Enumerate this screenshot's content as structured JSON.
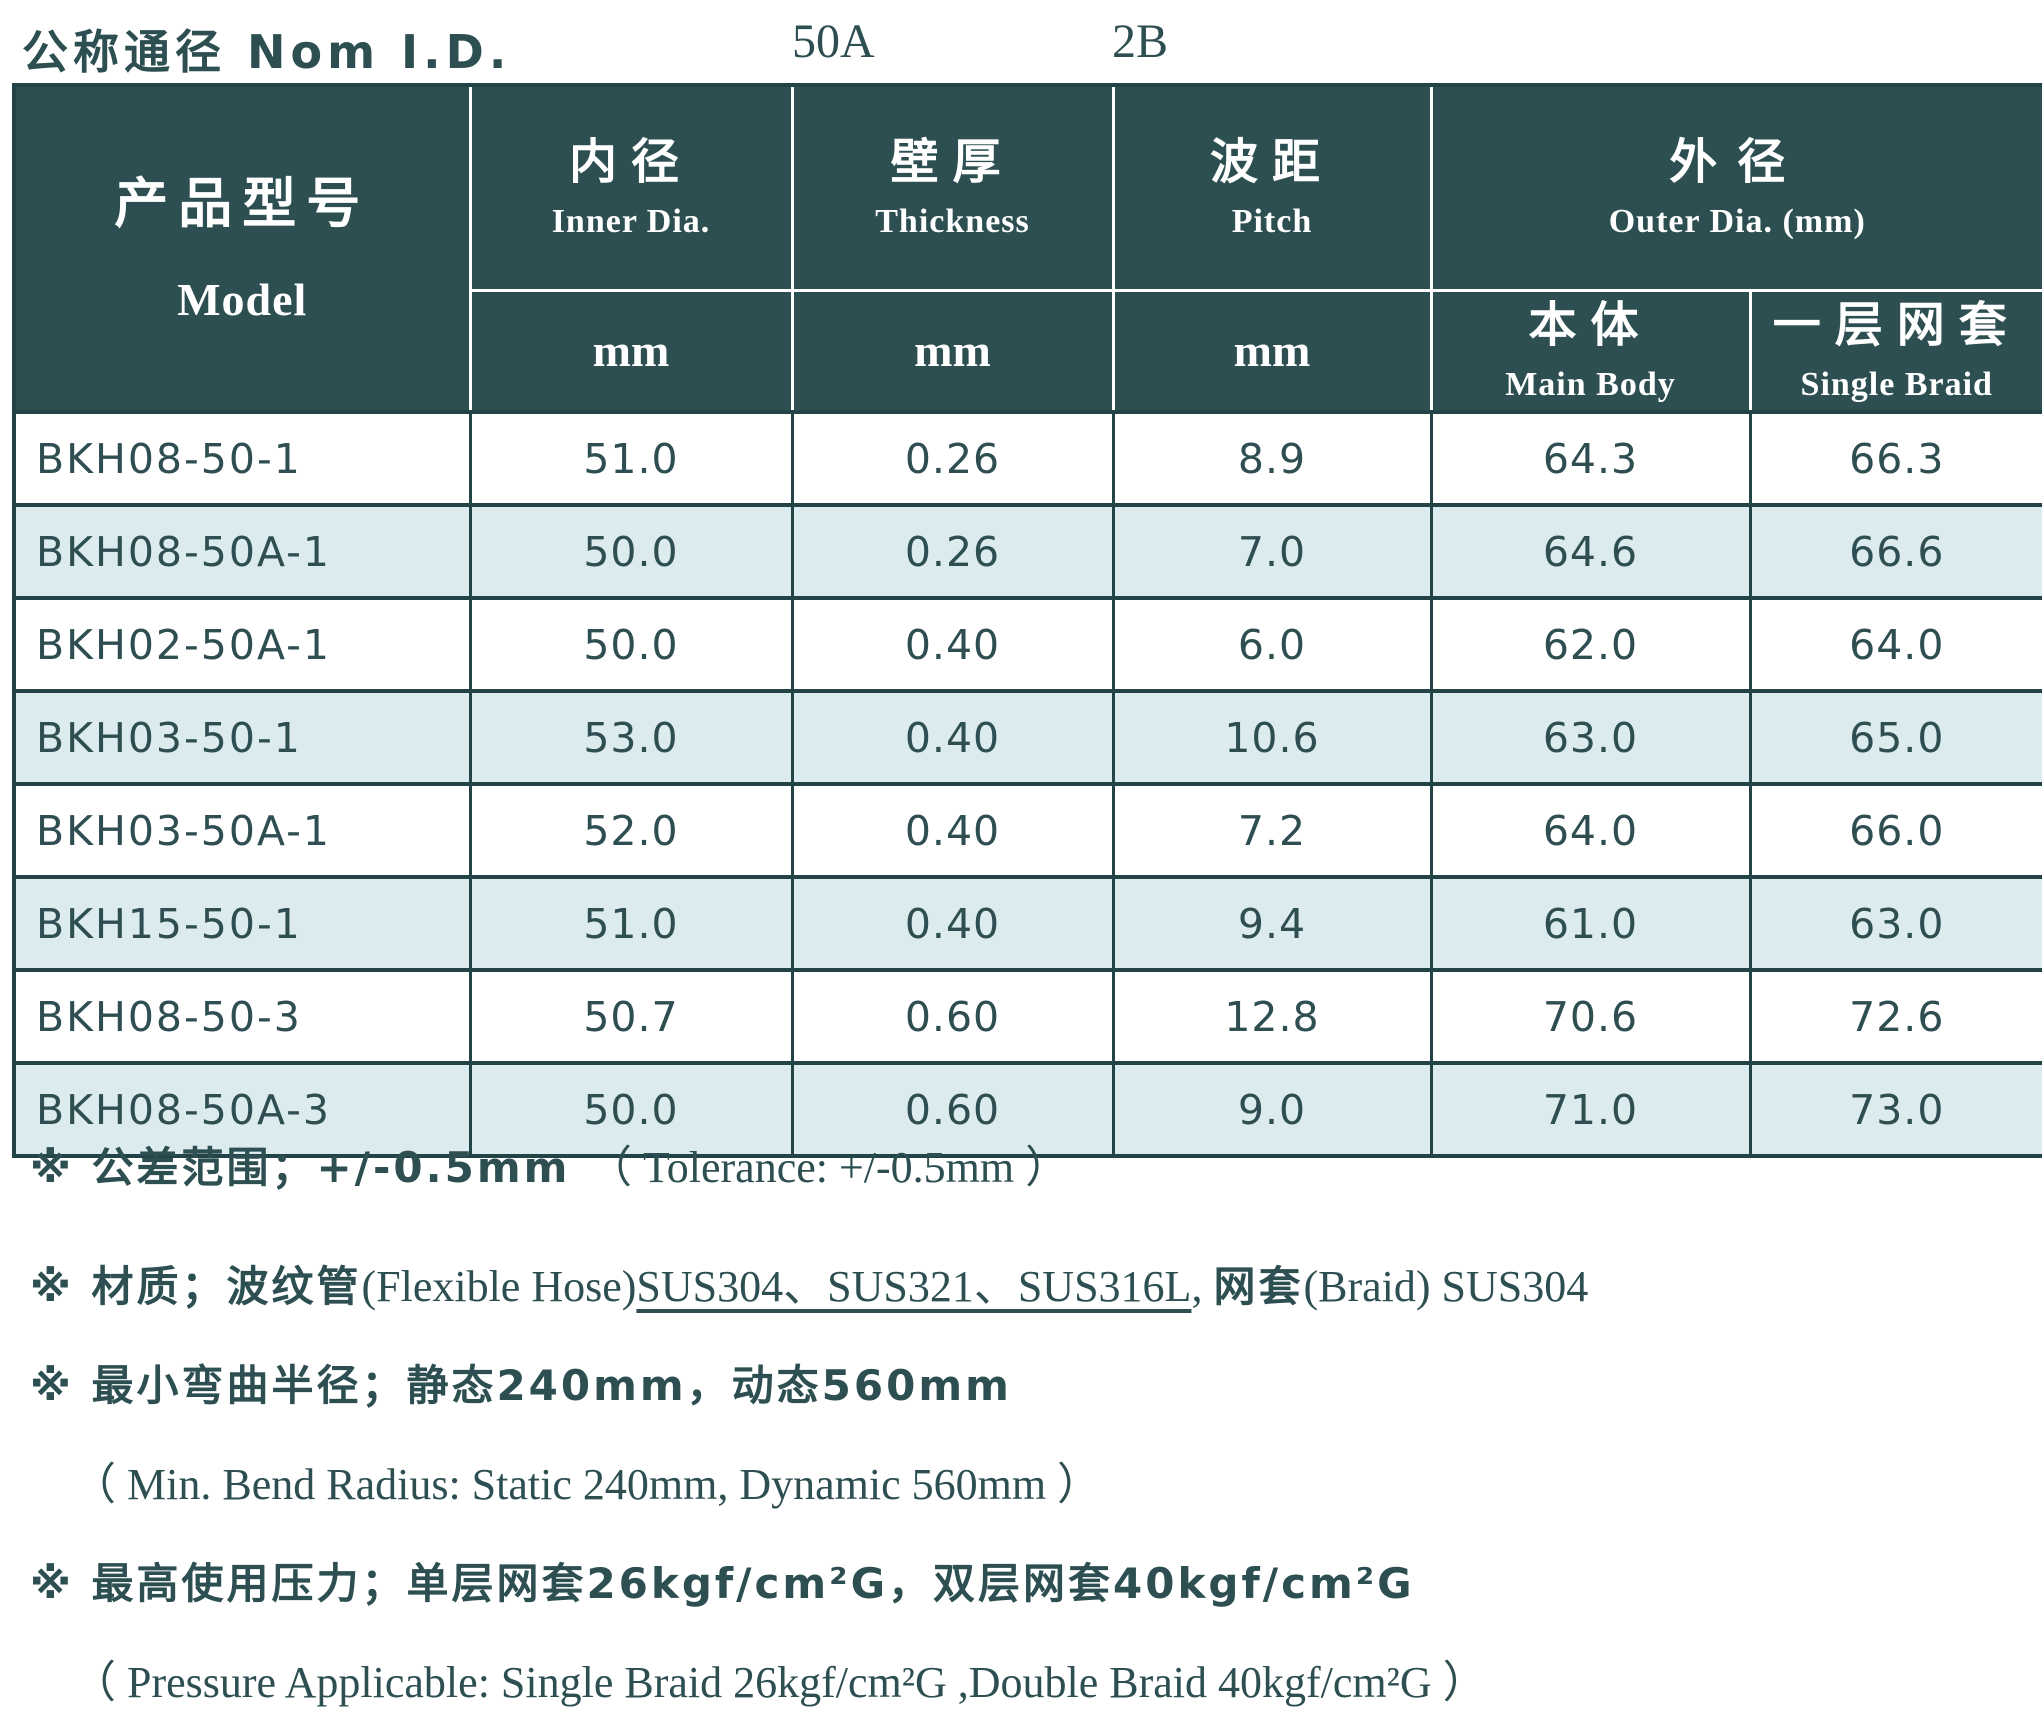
{
  "title_row": {
    "label": "公称通径 Nom I.D.",
    "size": "50A",
    "grade": "2B"
  },
  "colors": {
    "header_bg": "#2d4f52",
    "row_alt_bg": "#dcebed",
    "text": "#2e4e52",
    "border": "#234447"
  },
  "table": {
    "model_header": {
      "zh": "产品型号",
      "en": "Model"
    },
    "columns": [
      {
        "zh": "内径",
        "en": "Inner Dia.",
        "unit": "mm"
      },
      {
        "zh": "壁厚",
        "en": "Thickness",
        "unit": "mm"
      },
      {
        "zh": "波距",
        "en": "Pitch",
        "unit": "mm"
      }
    ],
    "outer_header": {
      "zh": "外径",
      "en": "Outer Dia. (mm)"
    },
    "outer_sub": [
      {
        "zh": "本体",
        "en": "Main Body"
      },
      {
        "zh": "一层网套",
        "en": "Single Braid"
      }
    ],
    "rows": [
      [
        "BKH08-50-1",
        "51.0",
        "0.26",
        "8.9",
        "64.3",
        "66.3"
      ],
      [
        "BKH08-50A-1",
        "50.0",
        "0.26",
        "7.0",
        "64.6",
        "66.6"
      ],
      [
        "BKH02-50A-1",
        "50.0",
        "0.40",
        "6.0",
        "62.0",
        "64.0"
      ],
      [
        "BKH03-50-1",
        "53.0",
        "0.40",
        "10.6",
        "63.0",
        "65.0"
      ],
      [
        "BKH03-50A-1",
        "52.0",
        "0.40",
        "7.2",
        "64.0",
        "66.0"
      ],
      [
        "BKH15-50-1",
        "51.0",
        "0.40",
        "9.4",
        "61.0",
        "63.0"
      ],
      [
        "BKH08-50-3",
        "50.7",
        "0.60",
        "12.8",
        "70.6",
        "72.6"
      ],
      [
        "BKH08-50A-3",
        "50.0",
        "0.60",
        "9.0",
        "71.0",
        "73.0"
      ]
    ]
  },
  "notes": {
    "lines": [
      {
        "indent": false,
        "gap": "normal",
        "segments": [
          {
            "t": "※ 公差范围；+/-0.5mm ",
            "c": "zh"
          },
          {
            "t": "（ Tolerance: +/-0.5mm ）",
            "c": "en"
          }
        ]
      },
      {
        "indent": false,
        "gap": "big",
        "segments": [
          {
            "t": "※ 材质；波纹管",
            "c": "zh"
          },
          {
            "t": "(Flexible Hose)",
            "c": "en"
          },
          {
            "t": "SUS304、SUS321、SUS316L",
            "c": "enu"
          },
          {
            "t": ", ",
            "c": "en"
          },
          {
            "t": "网套",
            "c": "zh"
          },
          {
            "t": "(Braid) SUS304",
            "c": "en"
          }
        ]
      },
      {
        "indent": false,
        "gap": "normal",
        "segments": [
          {
            "t": "※ 最小弯曲半径；静态240mm，动态560mm",
            "c": "zh"
          }
        ]
      },
      {
        "indent": true,
        "gap": "normal",
        "segments": [
          {
            "t": "（ Min. Bend Radius: Static 240mm, Dynamic 560mm ）",
            "c": "en"
          }
        ]
      },
      {
        "indent": false,
        "gap": "normal",
        "segments": [
          {
            "t": "※ 最高使用压力；单层网套26kgf/cm²G，双层网套40kgf/cm²G",
            "c": "zh"
          }
        ]
      },
      {
        "indent": true,
        "gap": "normal",
        "segments": [
          {
            "t": "（ Pressure Applicable: Single Braid 26kgf/cm²G ,Double Braid 40kgf/cm²G ）",
            "c": "en"
          }
        ]
      }
    ]
  }
}
